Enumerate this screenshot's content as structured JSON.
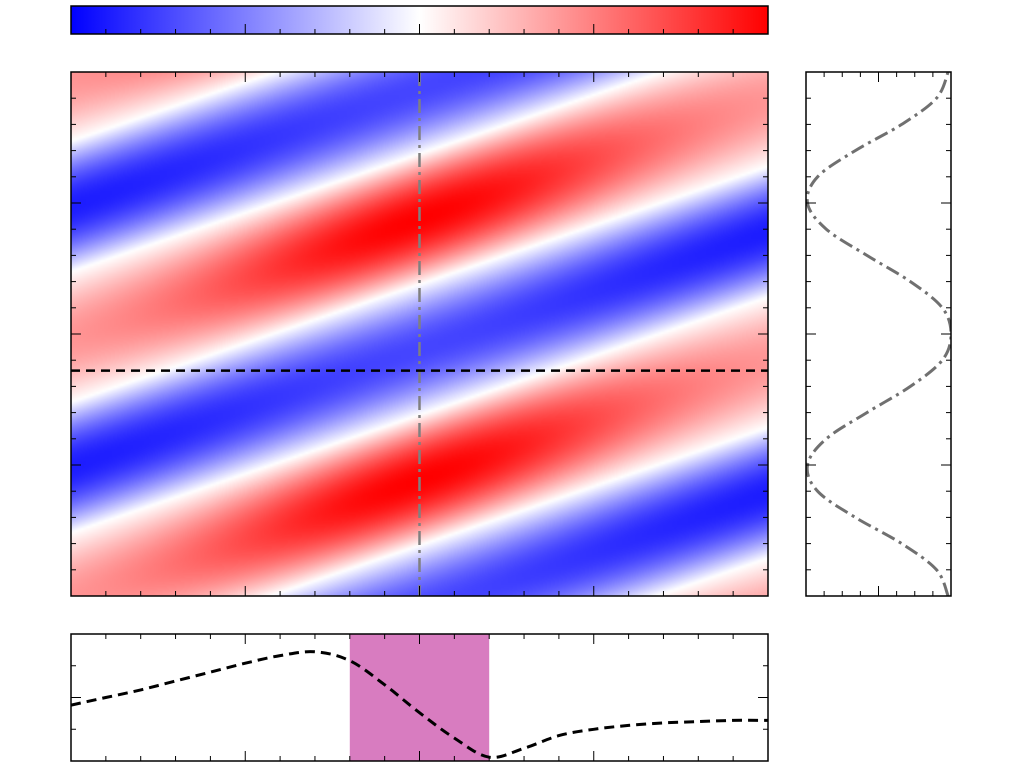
{
  "colors": {
    "negative": "#0000ff",
    "zero": "#ffffff",
    "positive": "#ff0000",
    "frame": "#000000",
    "horizontal_cut_line": "#000000",
    "vertical_cut_line": "#808080",
    "band_highlight": "#d87cc0"
  },
  "chart_data": [
    {
      "id": "colorbar",
      "type": "colorbar",
      "orientation": "horizontal",
      "range": [
        -1,
        1
      ],
      "colormap": [
        "#0000ff",
        "#ffffff",
        "#ff0000"
      ],
      "minor_ticks": 20
    },
    {
      "id": "main-map",
      "type": "heatmap",
      "xlim": [
        0,
        1
      ],
      "ylim": [
        0,
        1
      ],
      "value_range": [
        -1,
        1
      ],
      "vertical_cut_x": 0.5,
      "horizontal_cut_y": 0.43,
      "vertical_cut_style": "dash-dot",
      "horizontal_cut_style": "dashed",
      "x_minor_ticks": 20,
      "y_minor_ticks": 20
    },
    {
      "id": "side-profile",
      "type": "line",
      "orientation": "vertical",
      "style": "dash-dot",
      "xlim": [
        0,
        1
      ],
      "ylim": [
        0,
        1
      ],
      "y": [
        0.0,
        0.05,
        0.1,
        0.15,
        0.2,
        0.25,
        0.3,
        0.35,
        0.4,
        0.45,
        0.5,
        0.55,
        0.6,
        0.65,
        0.7,
        0.75,
        0.8,
        0.85,
        0.9,
        0.95,
        1.0
      ],
      "x": [
        0.98,
        0.9,
        0.66,
        0.34,
        0.08,
        0.01,
        0.14,
        0.42,
        0.72,
        0.94,
        1.0,
        0.94,
        0.72,
        0.42,
        0.14,
        0.01,
        0.08,
        0.34,
        0.66,
        0.9,
        0.98
      ]
    },
    {
      "id": "bottom-profile",
      "type": "line",
      "style": "dashed",
      "xlim": [
        0,
        1
      ],
      "ylim": [
        0,
        1
      ],
      "x": [
        0.0,
        0.05,
        0.1,
        0.15,
        0.2,
        0.25,
        0.3,
        0.35,
        0.4,
        0.45,
        0.5,
        0.55,
        0.6,
        0.65,
        0.7,
        0.75,
        0.8,
        0.85,
        0.9,
        0.95,
        1.0
      ],
      "y": [
        0.44,
        0.5,
        0.56,
        0.63,
        0.7,
        0.77,
        0.83,
        0.86,
        0.79,
        0.6,
        0.38,
        0.18,
        0.03,
        0.1,
        0.2,
        0.25,
        0.28,
        0.3,
        0.31,
        0.32,
        0.32
      ],
      "highlight_band_x": [
        0.4,
        0.6
      ]
    }
  ]
}
